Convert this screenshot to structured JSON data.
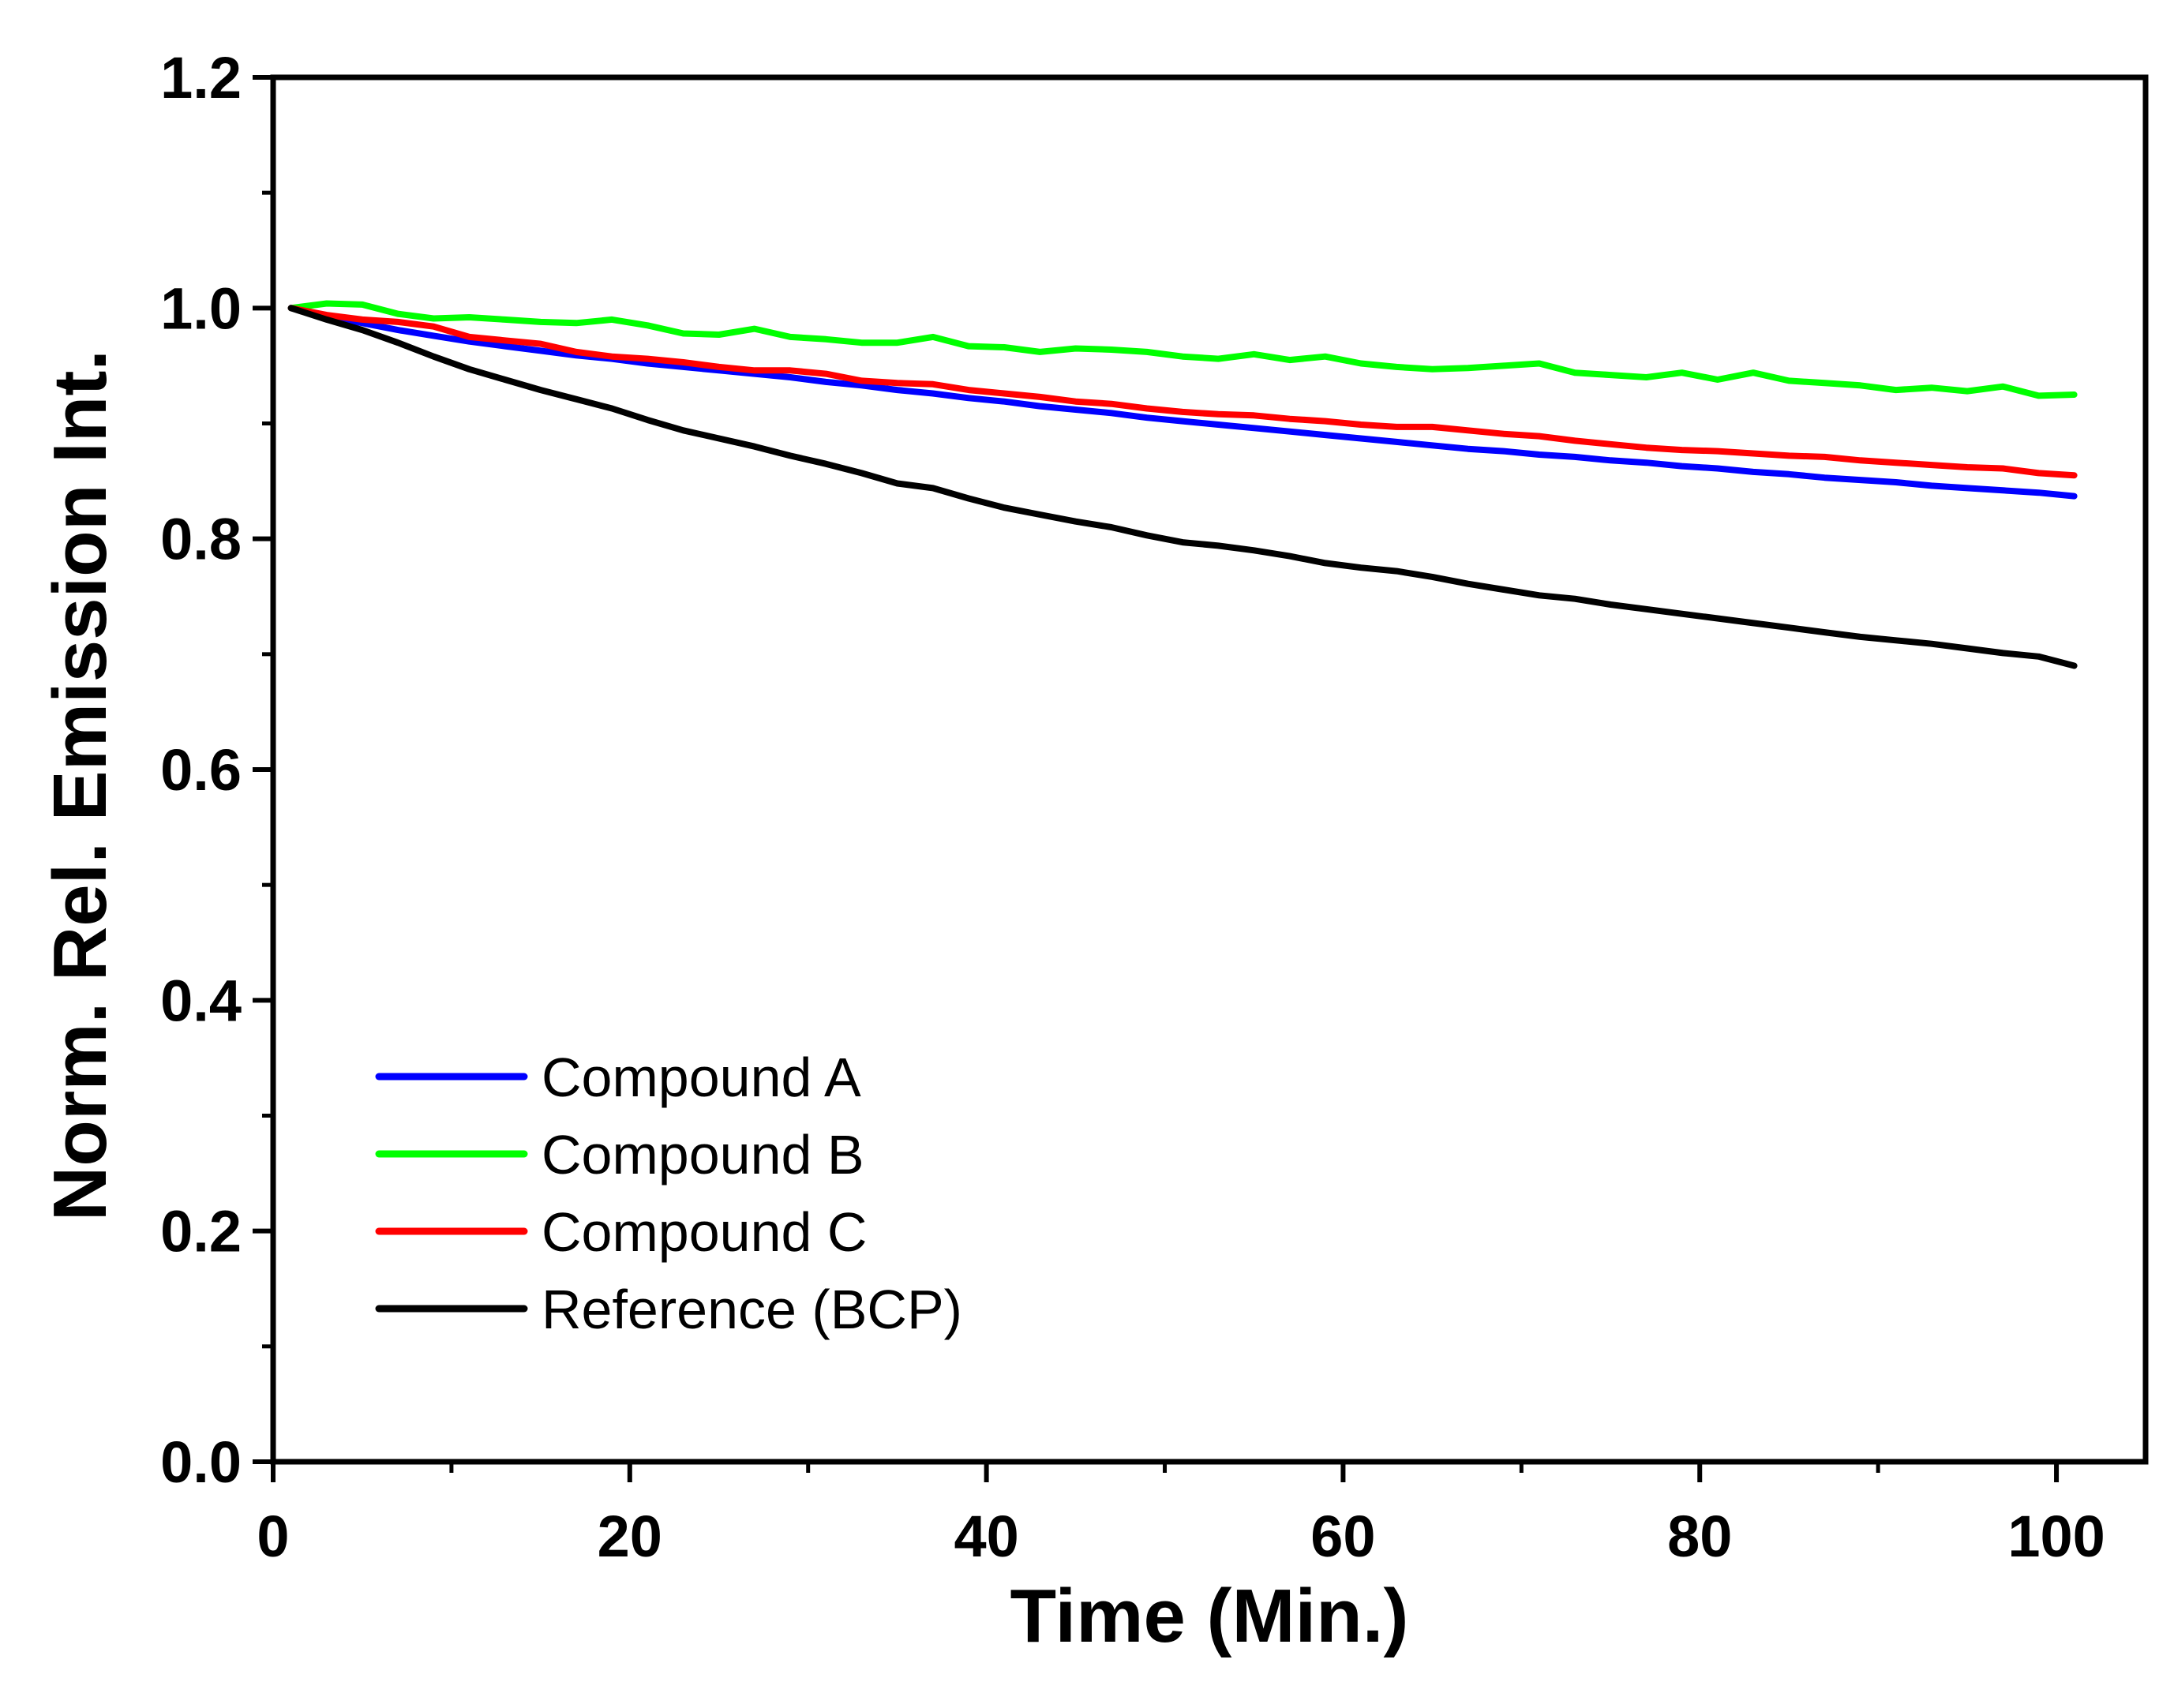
{
  "chart_data": {
    "type": "line",
    "title": "",
    "xlabel": "Time (Min.)",
    "ylabel": "Norm. Rel. Emission Int.",
    "xlim": [
      0,
      105
    ],
    "ylim": [
      0,
      1.2
    ],
    "x_ticks": [
      0,
      20,
      40,
      60,
      80,
      100
    ],
    "x_tick_labels": [
      "0",
      "20",
      "40",
      "60",
      "80",
      "100"
    ],
    "y_ticks": [
      0,
      0.2,
      0.4,
      0.6,
      0.8,
      1.0,
      1.2
    ],
    "y_tick_labels": [
      "0.0",
      "0.2",
      "0.4",
      "0.6",
      "0.8",
      "1.0",
      "1.2"
    ],
    "grid": false,
    "legend_position": "bottom-left",
    "x": [
      1,
      3,
      5,
      7,
      9,
      11,
      13,
      15,
      17,
      19,
      21,
      23,
      25,
      27,
      29,
      31,
      33,
      35,
      37,
      39,
      41,
      43,
      45,
      47,
      49,
      51,
      53,
      55,
      57,
      59,
      61,
      63,
      65,
      67,
      69,
      71,
      73,
      75,
      77,
      79,
      81,
      83,
      85,
      87,
      89,
      91,
      93,
      95,
      97,
      99,
      101
    ],
    "series": [
      {
        "name": "Compound A",
        "color": "#0000ff",
        "values": [
          1.0,
          0.993,
          0.987,
          0.981,
          0.976,
          0.971,
          0.967,
          0.963,
          0.959,
          0.956,
          0.952,
          0.949,
          0.946,
          0.943,
          0.94,
          0.936,
          0.933,
          0.929,
          0.926,
          0.922,
          0.919,
          0.915,
          0.912,
          0.909,
          0.905,
          0.902,
          0.899,
          0.896,
          0.893,
          0.89,
          0.887,
          0.884,
          0.881,
          0.878,
          0.876,
          0.873,
          0.871,
          0.868,
          0.866,
          0.863,
          0.861,
          0.858,
          0.856,
          0.853,
          0.851,
          0.849,
          0.846,
          0.844,
          0.842,
          0.84,
          0.837
        ]
      },
      {
        "name": "Compound B",
        "color": "#00ff00",
        "values": [
          1.0,
          1.004,
          1.003,
          0.995,
          0.991,
          0.992,
          0.99,
          0.988,
          0.987,
          0.99,
          0.985,
          0.978,
          0.977,
          0.982,
          0.975,
          0.973,
          0.97,
          0.97,
          0.975,
          0.967,
          0.966,
          0.962,
          0.965,
          0.964,
          0.962,
          0.958,
          0.956,
          0.96,
          0.955,
          0.958,
          0.952,
          0.949,
          0.947,
          0.948,
          0.95,
          0.952,
          0.944,
          0.942,
          0.94,
          0.944,
          0.938,
          0.944,
          0.937,
          0.935,
          0.933,
          0.929,
          0.931,
          0.928,
          0.932,
          0.924,
          0.925
        ]
      },
      {
        "name": "Compound C",
        "color": "#ff0000",
        "values": [
          1.0,
          0.994,
          0.99,
          0.988,
          0.984,
          0.975,
          0.972,
          0.969,
          0.962,
          0.958,
          0.956,
          0.953,
          0.949,
          0.946,
          0.946,
          0.943,
          0.937,
          0.935,
          0.934,
          0.929,
          0.926,
          0.923,
          0.919,
          0.917,
          0.913,
          0.91,
          0.908,
          0.907,
          0.904,
          0.902,
          0.899,
          0.897,
          0.897,
          0.894,
          0.891,
          0.889,
          0.885,
          0.882,
          0.879,
          0.877,
          0.876,
          0.874,
          0.872,
          0.871,
          0.868,
          0.866,
          0.864,
          0.862,
          0.861,
          0.857,
          0.855
        ]
      },
      {
        "name": "Reference (BCP)",
        "color": "#000000",
        "values": [
          1.0,
          0.99,
          0.981,
          0.97,
          0.958,
          0.947,
          0.938,
          0.929,
          0.921,
          0.913,
          0.903,
          0.894,
          0.887,
          0.88,
          0.872,
          0.865,
          0.857,
          0.848,
          0.844,
          0.835,
          0.827,
          0.821,
          0.815,
          0.81,
          0.803,
          0.797,
          0.794,
          0.79,
          0.785,
          0.779,
          0.775,
          0.772,
          0.767,
          0.761,
          0.756,
          0.751,
          0.748,
          0.743,
          0.739,
          0.735,
          0.731,
          0.727,
          0.723,
          0.719,
          0.715,
          0.712,
          0.709,
          0.705,
          0.701,
          0.698,
          0.69
        ]
      }
    ]
  }
}
